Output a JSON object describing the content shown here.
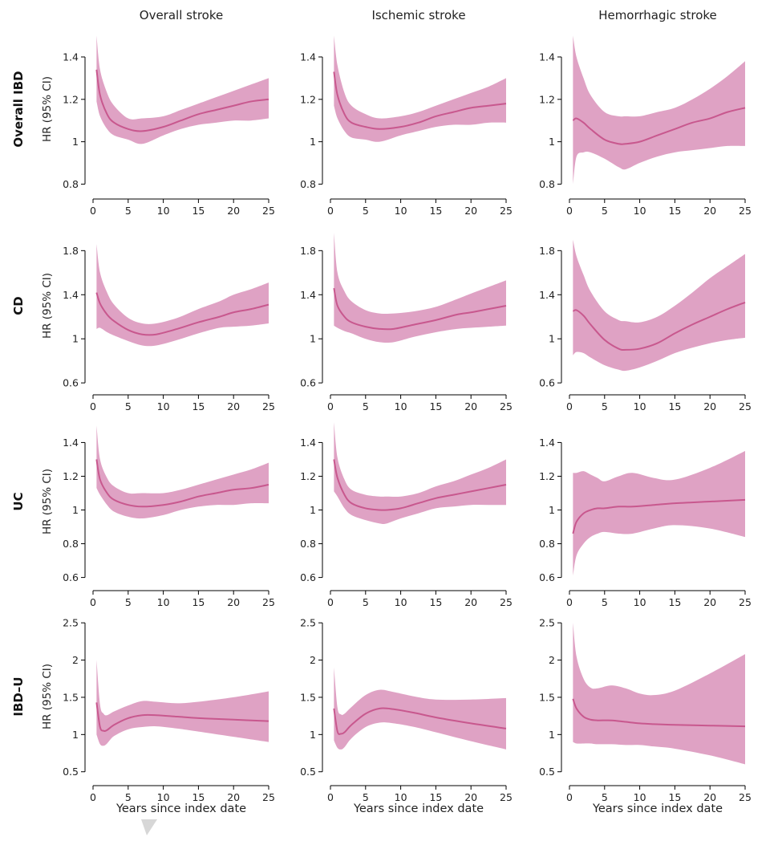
{
  "colors": {
    "band": "#dfa2c4",
    "line": "#c8588e"
  },
  "columns": [
    "Overall stroke",
    "Ischemic stroke",
    "Hemorrhagic stroke"
  ],
  "rows": [
    "Overall IBD",
    "CD",
    "UC",
    "IBD–U"
  ],
  "y_axis_label": "HR (95% CI)",
  "x_axis_label": "Years since index date",
  "chart_data": [
    {
      "type": "line",
      "row": "Overall IBD",
      "column": "Overall stroke",
      "xlim": [
        0,
        25
      ],
      "ylim": [
        0.76,
        1.54
      ],
      "yticks": [
        0.8,
        1.0,
        1.2,
        1.4
      ],
      "xticks": [
        0,
        5,
        10,
        15,
        20,
        25
      ],
      "x": [
        0.5,
        1,
        2,
        3,
        5,
        7,
        10,
        12.5,
        15,
        17.5,
        20,
        22.5,
        25
      ],
      "hr": [
        1.34,
        1.22,
        1.13,
        1.09,
        1.06,
        1.05,
        1.07,
        1.1,
        1.13,
        1.15,
        1.17,
        1.19,
        1.2
      ],
      "lower": [
        1.19,
        1.12,
        1.06,
        1.03,
        1.01,
        0.99,
        1.03,
        1.06,
        1.08,
        1.09,
        1.1,
        1.1,
        1.11
      ],
      "upper": [
        1.5,
        1.34,
        1.23,
        1.17,
        1.11,
        1.11,
        1.12,
        1.15,
        1.18,
        1.21,
        1.24,
        1.27,
        1.3
      ]
    },
    {
      "type": "line",
      "row": "Overall IBD",
      "column": "Ischemic stroke",
      "xlim": [
        0,
        25
      ],
      "ylim": [
        0.76,
        1.54
      ],
      "yticks": [
        0.8,
        1.0,
        1.2,
        1.4
      ],
      "xticks": [
        0,
        5,
        10,
        15,
        20,
        25
      ],
      "x": [
        0.5,
        1,
        2,
        3,
        5,
        7,
        10,
        12.5,
        15,
        17.5,
        20,
        22.5,
        25
      ],
      "hr": [
        1.33,
        1.22,
        1.13,
        1.09,
        1.07,
        1.06,
        1.07,
        1.09,
        1.12,
        1.14,
        1.16,
        1.17,
        1.18
      ],
      "lower": [
        1.17,
        1.11,
        1.05,
        1.02,
        1.01,
        1.0,
        1.03,
        1.05,
        1.07,
        1.08,
        1.08,
        1.09,
        1.09
      ],
      "upper": [
        1.5,
        1.36,
        1.23,
        1.17,
        1.13,
        1.11,
        1.12,
        1.14,
        1.17,
        1.2,
        1.23,
        1.26,
        1.3
      ]
    },
    {
      "type": "line",
      "row": "Overall IBD",
      "column": "Hemorrhagic stroke",
      "xlim": [
        0,
        25
      ],
      "ylim": [
        0.76,
        1.54
      ],
      "yticks": [
        0.8,
        1.0,
        1.2,
        1.4
      ],
      "xticks": [
        0,
        5,
        10,
        15,
        20,
        25
      ],
      "x": [
        0.5,
        1,
        2,
        3,
        5,
        7,
        8,
        10,
        12.5,
        15,
        17.5,
        20,
        22.5,
        25
      ],
      "hr": [
        1.1,
        1.11,
        1.09,
        1.06,
        1.01,
        0.99,
        0.99,
        1.0,
        1.03,
        1.06,
        1.09,
        1.11,
        1.14,
        1.16
      ],
      "lower": [
        0.8,
        0.93,
        0.95,
        0.95,
        0.92,
        0.88,
        0.87,
        0.9,
        0.93,
        0.95,
        0.96,
        0.97,
        0.98,
        0.98
      ],
      "upper": [
        1.5,
        1.4,
        1.3,
        1.22,
        1.14,
        1.12,
        1.12,
        1.12,
        1.14,
        1.16,
        1.2,
        1.25,
        1.31,
        1.38
      ]
    },
    {
      "type": "line",
      "row": "CD",
      "column": "Overall stroke",
      "xlim": [
        0,
        25
      ],
      "ylim": [
        0.55,
        2.05
      ],
      "yticks": [
        0.6,
        1.0,
        1.4,
        1.8
      ],
      "xticks": [
        0,
        5,
        10,
        15,
        20,
        25
      ],
      "x": [
        0.5,
        1,
        2,
        3,
        5,
        7,
        9,
        12,
        15,
        18,
        20,
        22.5,
        25
      ],
      "hr": [
        1.42,
        1.32,
        1.22,
        1.16,
        1.08,
        1.04,
        1.04,
        1.09,
        1.15,
        1.2,
        1.24,
        1.27,
        1.31
      ],
      "lower": [
        1.09,
        1.1,
        1.06,
        1.03,
        0.98,
        0.94,
        0.94,
        0.99,
        1.05,
        1.1,
        1.11,
        1.12,
        1.14
      ],
      "upper": [
        1.86,
        1.6,
        1.42,
        1.31,
        1.19,
        1.14,
        1.14,
        1.19,
        1.27,
        1.34,
        1.4,
        1.45,
        1.51
      ]
    },
    {
      "type": "line",
      "row": "CD",
      "column": "Ischemic stroke",
      "xlim": [
        0,
        25
      ],
      "ylim": [
        0.55,
        2.05
      ],
      "yticks": [
        0.6,
        1.0,
        1.4,
        1.8
      ],
      "xticks": [
        0,
        5,
        10,
        15,
        20,
        25
      ],
      "x": [
        0.5,
        1,
        2,
        3,
        5,
        7,
        9,
        12,
        15,
        18,
        20,
        22.5,
        25
      ],
      "hr": [
        1.46,
        1.3,
        1.2,
        1.15,
        1.11,
        1.09,
        1.09,
        1.13,
        1.17,
        1.22,
        1.24,
        1.27,
        1.3
      ],
      "lower": [
        1.12,
        1.1,
        1.07,
        1.05,
        1.0,
        0.97,
        0.97,
        1.02,
        1.06,
        1.09,
        1.1,
        1.11,
        1.12
      ],
      "upper": [
        1.96,
        1.6,
        1.43,
        1.34,
        1.26,
        1.23,
        1.23,
        1.25,
        1.29,
        1.36,
        1.41,
        1.47,
        1.53
      ]
    },
    {
      "type": "line",
      "row": "CD",
      "column": "Hemorrhagic stroke",
      "xlim": [
        0,
        25
      ],
      "ylim": [
        0.55,
        2.05
      ],
      "yticks": [
        0.6,
        1.0,
        1.4,
        1.8
      ],
      "xticks": [
        0,
        5,
        10,
        15,
        20,
        25
      ],
      "x": [
        0.5,
        1,
        2,
        3,
        5,
        7,
        8,
        10,
        12.5,
        15,
        17.5,
        20,
        22.5,
        25
      ],
      "hr": [
        1.25,
        1.26,
        1.21,
        1.13,
        0.99,
        0.91,
        0.9,
        0.91,
        0.96,
        1.05,
        1.13,
        1.2,
        1.27,
        1.33
      ],
      "lower": [
        0.85,
        0.88,
        0.87,
        0.83,
        0.76,
        0.72,
        0.71,
        0.74,
        0.8,
        0.87,
        0.92,
        0.96,
        0.99,
        1.01
      ],
      "upper": [
        1.9,
        1.75,
        1.58,
        1.43,
        1.25,
        1.17,
        1.16,
        1.15,
        1.2,
        1.3,
        1.42,
        1.55,
        1.66,
        1.77
      ]
    },
    {
      "type": "line",
      "row": "UC",
      "column": "Overall stroke",
      "xlim": [
        0,
        25
      ],
      "ylim": [
        0.56,
        1.54
      ],
      "yticks": [
        0.6,
        0.8,
        1.0,
        1.2,
        1.4
      ],
      "xticks": [
        0,
        5,
        10,
        15,
        20,
        25
      ],
      "x": [
        0.5,
        1,
        2,
        3,
        5,
        7,
        10,
        12.5,
        15,
        17.5,
        20,
        22.5,
        25
      ],
      "hr": [
        1.3,
        1.18,
        1.1,
        1.06,
        1.03,
        1.02,
        1.03,
        1.05,
        1.08,
        1.1,
        1.12,
        1.13,
        1.15
      ],
      "lower": [
        1.13,
        1.09,
        1.03,
        0.99,
        0.96,
        0.95,
        0.97,
        1.0,
        1.02,
        1.03,
        1.03,
        1.04,
        1.04
      ],
      "upper": [
        1.5,
        1.3,
        1.19,
        1.14,
        1.1,
        1.1,
        1.1,
        1.12,
        1.15,
        1.18,
        1.21,
        1.24,
        1.28
      ]
    },
    {
      "type": "line",
      "row": "UC",
      "column": "Ischemic stroke",
      "xlim": [
        0,
        25
      ],
      "ylim": [
        0.56,
        1.54
      ],
      "yticks": [
        0.6,
        0.8,
        1.0,
        1.2,
        1.4
      ],
      "xticks": [
        0,
        5,
        10,
        15,
        20,
        25
      ],
      "x": [
        0.5,
        1,
        2,
        3,
        5,
        7,
        8,
        10,
        12.5,
        15,
        17.5,
        20,
        22.5,
        25
      ],
      "hr": [
        1.3,
        1.19,
        1.09,
        1.04,
        1.01,
        1.0,
        1.0,
        1.01,
        1.04,
        1.07,
        1.09,
        1.11,
        1.13,
        1.15
      ],
      "lower": [
        1.11,
        1.08,
        1.01,
        0.97,
        0.94,
        0.92,
        0.92,
        0.95,
        0.98,
        1.01,
        1.02,
        1.03,
        1.03,
        1.03
      ],
      "upper": [
        1.52,
        1.31,
        1.18,
        1.12,
        1.09,
        1.08,
        1.08,
        1.08,
        1.1,
        1.14,
        1.17,
        1.21,
        1.25,
        1.3
      ]
    },
    {
      "type": "line",
      "row": "UC",
      "column": "Hemorrhagic stroke",
      "xlim": [
        0,
        25
      ],
      "ylim": [
        0.56,
        1.54
      ],
      "yticks": [
        0.6,
        0.8,
        1.0,
        1.2,
        1.4
      ],
      "xticks": [
        0,
        5,
        10,
        15,
        20,
        25
      ],
      "x": [
        0.5,
        1,
        2,
        3,
        4,
        5,
        7,
        9,
        12,
        15,
        20,
        25
      ],
      "hr": [
        0.86,
        0.93,
        0.98,
        1.0,
        1.01,
        1.01,
        1.02,
        1.02,
        1.03,
        1.04,
        1.05,
        1.06
      ],
      "lower": [
        0.61,
        0.73,
        0.8,
        0.84,
        0.86,
        0.87,
        0.86,
        0.86,
        0.89,
        0.91,
        0.89,
        0.84
      ],
      "upper": [
        1.22,
        1.22,
        1.23,
        1.21,
        1.19,
        1.17,
        1.2,
        1.22,
        1.19,
        1.18,
        1.25,
        1.35
      ]
    },
    {
      "type": "line",
      "row": "IBD–U",
      "column": "Overall stroke",
      "xlim": [
        0,
        25
      ],
      "ylim": [
        0.4,
        2.62
      ],
      "yticks": [
        0.5,
        1.0,
        1.5,
        2.0,
        2.5
      ],
      "xticks": [
        0,
        5,
        10,
        15,
        20,
        25
      ],
      "x": [
        0.5,
        1,
        1.5,
        2,
        3,
        5,
        7,
        9,
        12,
        15,
        20,
        25
      ],
      "hr": [
        1.43,
        1.1,
        1.05,
        1.06,
        1.13,
        1.22,
        1.26,
        1.26,
        1.24,
        1.22,
        1.2,
        1.18
      ],
      "lower": [
        1.0,
        0.87,
        0.85,
        0.88,
        0.98,
        1.07,
        1.1,
        1.11,
        1.08,
        1.04,
        0.97,
        0.9
      ],
      "upper": [
        2.0,
        1.4,
        1.28,
        1.26,
        1.31,
        1.39,
        1.45,
        1.44,
        1.42,
        1.44,
        1.5,
        1.58
      ]
    },
    {
      "type": "line",
      "row": "IBD–U",
      "column": "Ischemic stroke",
      "xlim": [
        0,
        25
      ],
      "ylim": [
        0.4,
        2.62
      ],
      "yticks": [
        0.5,
        1.0,
        1.5,
        2.0,
        2.5
      ],
      "xticks": [
        0,
        5,
        10,
        15,
        20,
        25
      ],
      "x": [
        0.5,
        1,
        1.5,
        2,
        3,
        5,
        7,
        9,
        12,
        15,
        20,
        25
      ],
      "hr": [
        1.35,
        1.04,
        1.01,
        1.03,
        1.13,
        1.28,
        1.35,
        1.34,
        1.29,
        1.23,
        1.15,
        1.08
      ],
      "lower": [
        0.92,
        0.82,
        0.8,
        0.83,
        0.95,
        1.1,
        1.16,
        1.15,
        1.1,
        1.03,
        0.91,
        0.8
      ],
      "upper": [
        1.9,
        1.36,
        1.27,
        1.28,
        1.37,
        1.53,
        1.6,
        1.57,
        1.51,
        1.47,
        1.47,
        1.49
      ]
    },
    {
      "type": "line",
      "row": "IBD–U",
      "column": "Hemorrhagic stroke",
      "xlim": [
        0,
        25
      ],
      "ylim": [
        0.4,
        2.62
      ],
      "yticks": [
        0.5,
        1.0,
        1.5,
        2.0,
        2.5
      ],
      "xticks": [
        0,
        5,
        10,
        15,
        20,
        25
      ],
      "x": [
        0.5,
        1,
        2,
        3,
        4,
        6,
        8,
        10,
        12,
        15,
        20,
        25
      ],
      "hr": [
        1.48,
        1.35,
        1.24,
        1.2,
        1.19,
        1.19,
        1.17,
        1.15,
        1.14,
        1.13,
        1.12,
        1.11
      ],
      "lower": [
        0.9,
        0.88,
        0.88,
        0.88,
        0.87,
        0.87,
        0.86,
        0.86,
        0.84,
        0.81,
        0.72,
        0.6
      ],
      "upper": [
        2.5,
        2.05,
        1.75,
        1.63,
        1.62,
        1.66,
        1.62,
        1.55,
        1.53,
        1.59,
        1.82,
        2.08
      ]
    }
  ]
}
